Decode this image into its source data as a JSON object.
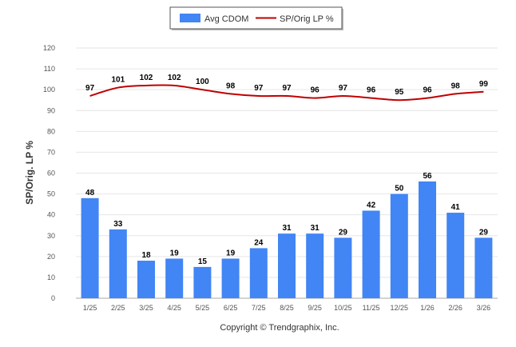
{
  "chart_data": {
    "type": "bar",
    "categories": [
      "1/25",
      "2/25",
      "3/25",
      "4/25",
      "5/25",
      "6/25",
      "7/25",
      "8/25",
      "9/25",
      "10/25",
      "11/25",
      "12/25",
      "1/26",
      "2/26",
      "3/26"
    ],
    "series": [
      {
        "name": "Avg CDOM",
        "type": "bar",
        "color": "#4285f4",
        "values": [
          48,
          33,
          18,
          19,
          15,
          19,
          24,
          31,
          31,
          29,
          42,
          50,
          56,
          41,
          29
        ]
      },
      {
        "name": "SP/Orig LP %",
        "type": "line",
        "color": "#c00000",
        "values": [
          97,
          101,
          102,
          102,
          100,
          98,
          97,
          97,
          96,
          97,
          96,
          95,
          96,
          98,
          99
        ]
      }
    ],
    "ylabel": "SP/Orig. LP %",
    "ylim": [
      0,
      120
    ],
    "yticks": [
      0,
      10,
      20,
      30,
      40,
      50,
      60,
      70,
      80,
      90,
      100,
      110,
      120
    ],
    "grid": true,
    "legend": "top-center"
  },
  "footer": "Copyright © Trendgraphix, Inc."
}
